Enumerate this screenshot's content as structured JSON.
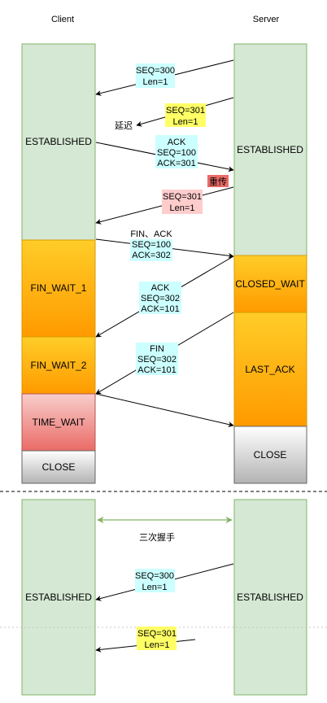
{
  "headers": {
    "client": "Client",
    "server": "Server"
  },
  "colors": {
    "established": "#d5e8d4",
    "green_border": "#82b366",
    "orange_top": "#ffcd28",
    "orange_bottom": "#ff9a00",
    "red_top": "#f8cecc",
    "red_bottom": "#ea6b66",
    "gray_top": "#ffffff",
    "gray_bottom": "#b3b3b3",
    "cyan_label": "#ccffff",
    "yellow_label": "#ffff66",
    "pink_label": "#ffcccc",
    "red_tag": "#ea6b66"
  },
  "top_section": {
    "client_states": [
      "ESTABLISHED",
      "FIN_WAIT_1",
      "FIN_WAIT_2",
      "TIME_WAIT",
      "CLOSE"
    ],
    "server_states": [
      "ESTABLISHED",
      "CLOSED_WAIT",
      "LAST_ACK",
      "CLOSE"
    ],
    "messages": [
      {
        "lines": [
          "SEQ=300",
          "Len=1"
        ]
      },
      {
        "lines": [
          "SEQ=301",
          "Len=1"
        ],
        "tag": "延迟"
      },
      {
        "lines": [
          "ACK",
          "SEQ=100",
          "ACK=301"
        ]
      },
      {
        "lines": [
          "SEQ=301",
          "Len=1"
        ],
        "tag": "重传"
      },
      {
        "lines": [
          "FIN、ACK",
          "SEQ=100",
          "ACK=302"
        ]
      },
      {
        "lines": [
          "ACK",
          "SEQ=302",
          "ACK=101"
        ]
      },
      {
        "lines": [
          "FIN",
          "SEQ=302",
          "ACK=101"
        ]
      }
    ]
  },
  "bottom_section": {
    "client_state": "ESTABLISHED",
    "server_state": "ESTABLISHED",
    "handshake_label": "三次握手",
    "messages": [
      {
        "lines": [
          "SEQ=300",
          "Len=1"
        ]
      },
      {
        "lines": [
          "SEQ=301",
          "Len=1"
        ]
      }
    ]
  }
}
